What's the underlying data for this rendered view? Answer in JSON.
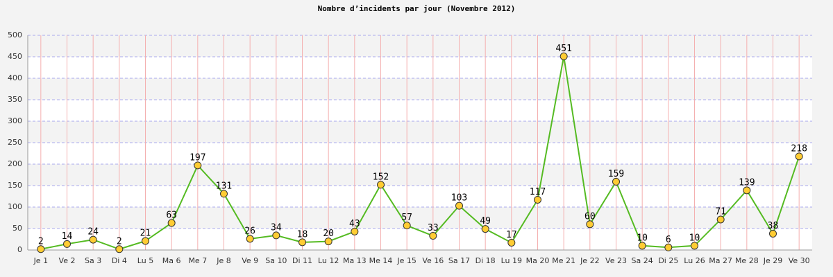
{
  "chart_data": {
    "type": "line",
    "title": "Nombre d’incidents par jour (Novembre 2012)",
    "categories": [
      "Je 1",
      "Ve 2",
      "Sa 3",
      "Di 4",
      "Lu 5",
      "Ma 6",
      "Me 7",
      "Je 8",
      "Ve 9",
      "Sa 10",
      "Di 11",
      "Lu 12",
      "Ma 13",
      "Me 14",
      "Je 15",
      "Ve 16",
      "Sa 17",
      "Di 18",
      "Lu 19",
      "Ma 20",
      "Me 21",
      "Je 22",
      "Ve 23",
      "Sa 24",
      "Di 25",
      "Lu 26",
      "Ma 27",
      "Me 28",
      "Je 29",
      "Ve 30"
    ],
    "values": [
      2,
      14,
      24,
      2,
      21,
      63,
      197,
      131,
      26,
      34,
      18,
      20,
      43,
      152,
      57,
      33,
      103,
      49,
      17,
      117,
      451,
      60,
      159,
      10,
      6,
      10,
      71,
      139,
      38,
      218
    ],
    "color": "#55bb22",
    "marker_color": "#ffcc33",
    "ylim": [
      0,
      500
    ],
    "yticks": [
      0,
      50,
      100,
      150,
      200,
      250,
      300,
      350,
      400,
      450,
      500
    ],
    "grid": true
  }
}
